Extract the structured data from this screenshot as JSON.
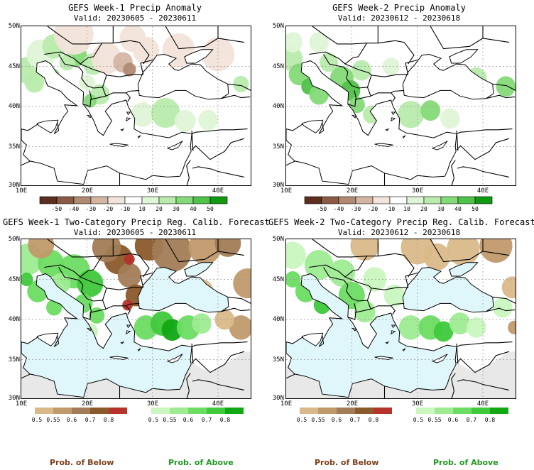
{
  "panels": [
    {
      "id": "p1",
      "title": "GEFS Week-1 Precip Anomaly",
      "subtitle": "Valid: 20230605 - 20230611",
      "lat_labels": [
        "50N",
        "45N",
        "40N",
        "35N",
        "30N"
      ],
      "lon_labels": [
        "10E",
        "20E",
        "30E",
        "40E"
      ],
      "type": "anomaly"
    },
    {
      "id": "p2",
      "title": "GEFS Week-2 Precip Anomaly",
      "subtitle": "Valid: 20230612 - 20230618",
      "lat_labels": [
        "50N",
        "45N",
        "40N",
        "35N",
        "30N"
      ],
      "lon_labels": [
        "10E",
        "20E",
        "30E",
        "40E"
      ],
      "type": "anomaly"
    },
    {
      "id": "p3",
      "title": "GEFS Week-1 Two-Category Precip Reg. Calib. Forecast",
      "subtitle": "Valid: 20230605 - 20230611",
      "lat_labels": [
        "50N",
        "45N",
        "40N",
        "35N",
        "30N"
      ],
      "lon_labels": [
        "10E",
        "20E",
        "30E",
        "40E"
      ],
      "type": "probability"
    },
    {
      "id": "p4",
      "title": "GEFS Week-2 Two-Category Precip Reg. Calib. Forecast",
      "subtitle": "Valid: 20230612 - 20230618",
      "lat_labels": [
        "50N",
        "45N",
        "40N",
        "35N",
        "30N"
      ],
      "lon_labels": [
        "10E",
        "20E",
        "30E",
        "40E"
      ],
      "type": "probability"
    }
  ],
  "anomaly_colorbar": {
    "ticks": [
      "-50",
      "-40",
      "-30",
      "-20",
      "-10",
      "10",
      "20",
      "30",
      "40",
      "50"
    ],
    "colors": [
      "#5c2e1f",
      "#8a5a44",
      "#b08a73",
      "#d4b5a3",
      "#f2e4da",
      "#ffffff",
      "#dff5d7",
      "#b9ebad",
      "#84da78",
      "#4fc24a",
      "#119a11"
    ]
  },
  "probability_colorbar": {
    "below_ticks": [
      "0.5",
      "0.55",
      "0.6",
      "0.7",
      "0.8"
    ],
    "below_colors": [
      "#d9b98a",
      "#c19a6b",
      "#a27c56",
      "#8b5a2b",
      "#b5332a"
    ],
    "above_ticks": [
      "0.5",
      "0.55",
      "0.6",
      "0.7",
      "0.8"
    ],
    "above_colors": [
      "#c9f7bf",
      "#9eeb92",
      "#6ddc62",
      "#3fc93b",
      "#11a814"
    ]
  },
  "footer": {
    "below_label": "Prob. of Below",
    "above_label": "Prob. of Above",
    "below_color": "#7b3f1a",
    "above_color": "#1f9a1f"
  },
  "colors": {
    "sea_prob": "#dff6fa",
    "land_prob_nodata": "#e8e8e8",
    "grid": "#999999"
  }
}
